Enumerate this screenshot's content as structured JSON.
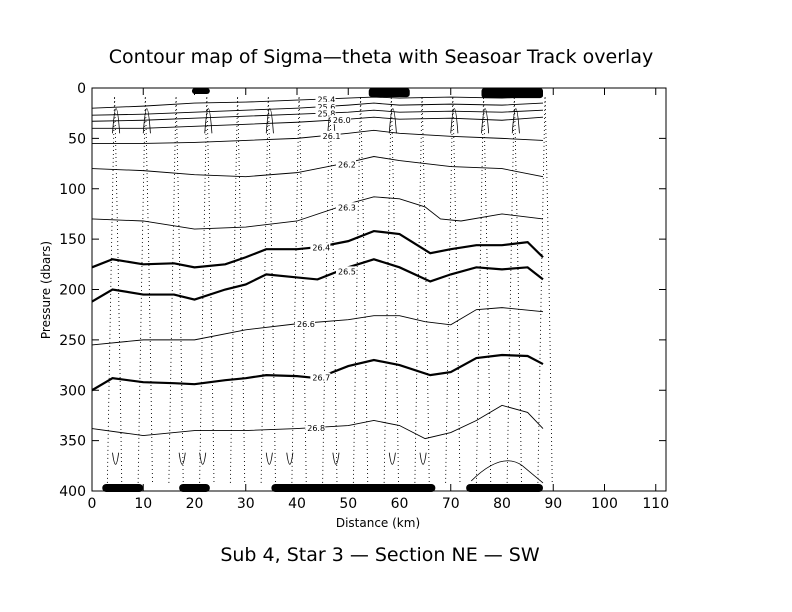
{
  "chart_data": {
    "type": "contour",
    "title": "Contour map of Sigma—theta with Seasoar Track overlay",
    "subtitle": "Sub 4, Star 3 — Section NE — SW",
    "xlabel": "Distance (km)",
    "ylabel": "Pressure (dbars)",
    "xlim": [
      0,
      112
    ],
    "ylim": [
      400,
      0
    ],
    "x_ticks": [
      0,
      10,
      20,
      30,
      40,
      50,
      60,
      70,
      80,
      90,
      100,
      110
    ],
    "y_ticks": [
      0,
      50,
      100,
      150,
      200,
      250,
      300,
      350,
      400
    ],
    "x_tick_labels": [
      "0",
      "10",
      "20",
      "30",
      "40",
      "50",
      "60",
      "70",
      "80",
      "90",
      "100",
      "110"
    ],
    "y_tick_labels": [
      "0",
      "50",
      "100",
      "150",
      "200",
      "250",
      "300",
      "350",
      "400"
    ],
    "contours": [
      {
        "level": "25.4",
        "label_x": 44,
        "label_y": 13,
        "heavy": false,
        "x": [
          0,
          10,
          20,
          30,
          40,
          50,
          55,
          60,
          70,
          80,
          88
        ],
        "y": [
          20,
          18,
          15,
          14,
          12,
          10,
          9,
          10,
          9,
          10,
          8
        ]
      },
      {
        "level": "25.6",
        "label_x": 44,
        "label_y": 22,
        "heavy": false,
        "x": [
          0,
          10,
          20,
          30,
          40,
          50,
          55,
          60,
          70,
          80,
          88
        ],
        "y": [
          27,
          26,
          24,
          22,
          20,
          17,
          15,
          17,
          16,
          17,
          15
        ]
      },
      {
        "level": "25.8",
        "label_x": 44,
        "label_y": 29,
        "heavy": false,
        "x": [
          0,
          10,
          20,
          30,
          40,
          50,
          55,
          60,
          70,
          80,
          88
        ],
        "y": [
          33,
          32,
          30,
          28,
          26,
          24,
          22,
          24,
          23,
          24,
          22
        ]
      },
      {
        "level": "26.0",
        "label_x": 47,
        "label_y": 37,
        "heavy": false,
        "x": [
          0,
          10,
          20,
          30,
          40,
          50,
          55,
          60,
          70,
          80,
          88
        ],
        "y": [
          40,
          40,
          38,
          36,
          34,
          31,
          29,
          31,
          30,
          32,
          29
        ]
      },
      {
        "level": "26.1",
        "label_x": 45,
        "label_y": 53,
        "heavy": false,
        "x": [
          0,
          10,
          20,
          30,
          40,
          50,
          55,
          60,
          70,
          80,
          88
        ],
        "y": [
          55,
          55,
          54,
          52,
          50,
          45,
          42,
          45,
          48,
          50,
          52
        ]
      },
      {
        "level": "26.2",
        "label_x": 48,
        "label_y": 73,
        "heavy": false,
        "x": [
          0,
          10,
          20,
          30,
          40,
          50,
          55,
          60,
          70,
          80,
          88
        ],
        "y": [
          80,
          82,
          86,
          88,
          84,
          74,
          68,
          72,
          78,
          80,
          88
        ]
      },
      {
        "level": "26.3",
        "label_x": 48,
        "label_y": 118,
        "heavy": false,
        "x": [
          0,
          10,
          20,
          30,
          40,
          50,
          55,
          60,
          65,
          68,
          72,
          80,
          88
        ],
        "y": [
          130,
          132,
          140,
          138,
          132,
          115,
          108,
          110,
          118,
          130,
          132,
          125,
          130
        ]
      },
      {
        "level": "26.4",
        "label_x": 43,
        "label_y": 156,
        "heavy": true,
        "x": [
          0,
          4,
          10,
          16,
          20,
          26,
          30,
          34,
          40,
          44,
          50,
          55,
          60,
          66,
          70,
          75,
          80,
          85,
          88
        ],
        "y": [
          178,
          170,
          175,
          174,
          178,
          175,
          168,
          160,
          160,
          158,
          152,
          142,
          145,
          164,
          160,
          156,
          156,
          153,
          168
        ]
      },
      {
        "level": "26.5",
        "label_x": 48,
        "label_y": 179,
        "heavy": true,
        "x": [
          0,
          4,
          10,
          16,
          20,
          26,
          30,
          34,
          40,
          44,
          50,
          55,
          60,
          66,
          70,
          75,
          80,
          85,
          88
        ],
        "y": [
          212,
          200,
          205,
          205,
          210,
          200,
          195,
          185,
          188,
          190,
          178,
          170,
          178,
          192,
          185,
          178,
          180,
          178,
          190
        ]
      },
      {
        "level": "26.6",
        "label_x": 40,
        "label_y": 232,
        "heavy": false,
        "x": [
          0,
          10,
          20,
          30,
          40,
          50,
          55,
          60,
          65,
          70,
          75,
          80,
          88
        ],
        "y": [
          255,
          250,
          250,
          240,
          234,
          230,
          226,
          226,
          232,
          235,
          220,
          218,
          222
        ]
      },
      {
        "level": "26.7",
        "label_x": 43,
        "label_y": 287,
        "heavy": true,
        "x": [
          0,
          4,
          10,
          16,
          20,
          26,
          30,
          34,
          40,
          44,
          50,
          55,
          60,
          66,
          70,
          75,
          80,
          85,
          88
        ],
        "y": [
          300,
          288,
          292,
          293,
          294,
          290,
          288,
          285,
          286,
          288,
          276,
          270,
          275,
          285,
          282,
          268,
          265,
          266,
          274
        ]
      },
      {
        "level": "26.8",
        "label_x": 42,
        "label_y": 338,
        "heavy": false,
        "x": [
          0,
          10,
          20,
          30,
          40,
          50,
          55,
          60,
          65,
          70,
          75,
          80,
          85,
          88
        ],
        "y": [
          338,
          345,
          340,
          340,
          338,
          335,
          330,
          335,
          348,
          342,
          330,
          315,
          322,
          338
        ]
      }
    ]
  }
}
